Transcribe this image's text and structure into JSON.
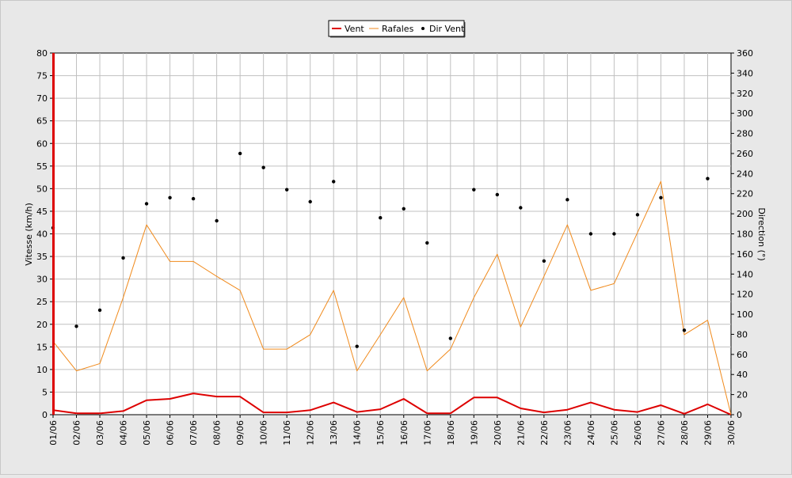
{
  "chart_data": {
    "type": "line",
    "legend_position": "top-center",
    "grid": true,
    "y_left": {
      "label": "Vitesse (km/h)",
      "range": [
        0,
        80
      ],
      "ticks": [
        0,
        5,
        10,
        15,
        20,
        25,
        30,
        35,
        40,
        45,
        50,
        55,
        60,
        65,
        70,
        75,
        80
      ]
    },
    "y_right": {
      "label": "Direction (°)",
      "range": [
        0,
        360
      ],
      "ticks": [
        0,
        20,
        40,
        60,
        80,
        100,
        120,
        140,
        160,
        180,
        200,
        220,
        240,
        260,
        280,
        300,
        320,
        340,
        360
      ]
    },
    "categories": [
      "01/06",
      "02/06",
      "03/06",
      "04/06",
      "05/06",
      "06/06",
      "07/06",
      "08/06",
      "09/06",
      "10/06",
      "11/06",
      "12/06",
      "13/06",
      "14/06",
      "15/06",
      "16/06",
      "17/06",
      "18/06",
      "19/06",
      "20/06",
      "21/06",
      "22/06",
      "23/06",
      "24/06",
      "25/06",
      "26/06",
      "27/06",
      "28/06",
      "29/06",
      "30/06"
    ],
    "series": [
      {
        "name": "Vent",
        "axis": "left",
        "color": "#dd0000",
        "values": [
          1.0,
          0.3,
          0.3,
          0.8,
          3.2,
          3.5,
          4.7,
          4.0,
          4.0,
          0.5,
          0.5,
          1.0,
          2.7,
          0.6,
          1.2,
          3.5,
          0.3,
          0.3,
          3.8,
          3.8,
          1.4,
          0.5,
          1.1,
          2.7,
          1.1,
          0.6,
          2.1,
          0.2,
          2.3,
          0.0
        ]
      },
      {
        "name": "Rafales",
        "axis": "left",
        "color": "#f08a1c",
        "values": [
          16.2,
          9.7,
          11.3,
          25.9,
          42.0,
          33.9,
          33.9,
          30.6,
          27.5,
          14.5,
          14.5,
          17.7,
          27.5,
          9.7,
          17.7,
          25.9,
          9.7,
          14.5,
          25.9,
          35.5,
          19.4,
          30.6,
          42.0,
          27.5,
          29.0,
          40.3,
          51.6,
          17.7,
          20.9,
          0.0
        ]
      },
      {
        "name": "Dir Vent",
        "axis": "right",
        "color": "#000000",
        "marker": "dot",
        "values": [
          186,
          88,
          104,
          156,
          210,
          216,
          215,
          193,
          260,
          246,
          224,
          212,
          232,
          68,
          196,
          205,
          171,
          76,
          224,
          219,
          206,
          153,
          214,
          180,
          180,
          199,
          216,
          84,
          235,
          null
        ]
      }
    ]
  }
}
